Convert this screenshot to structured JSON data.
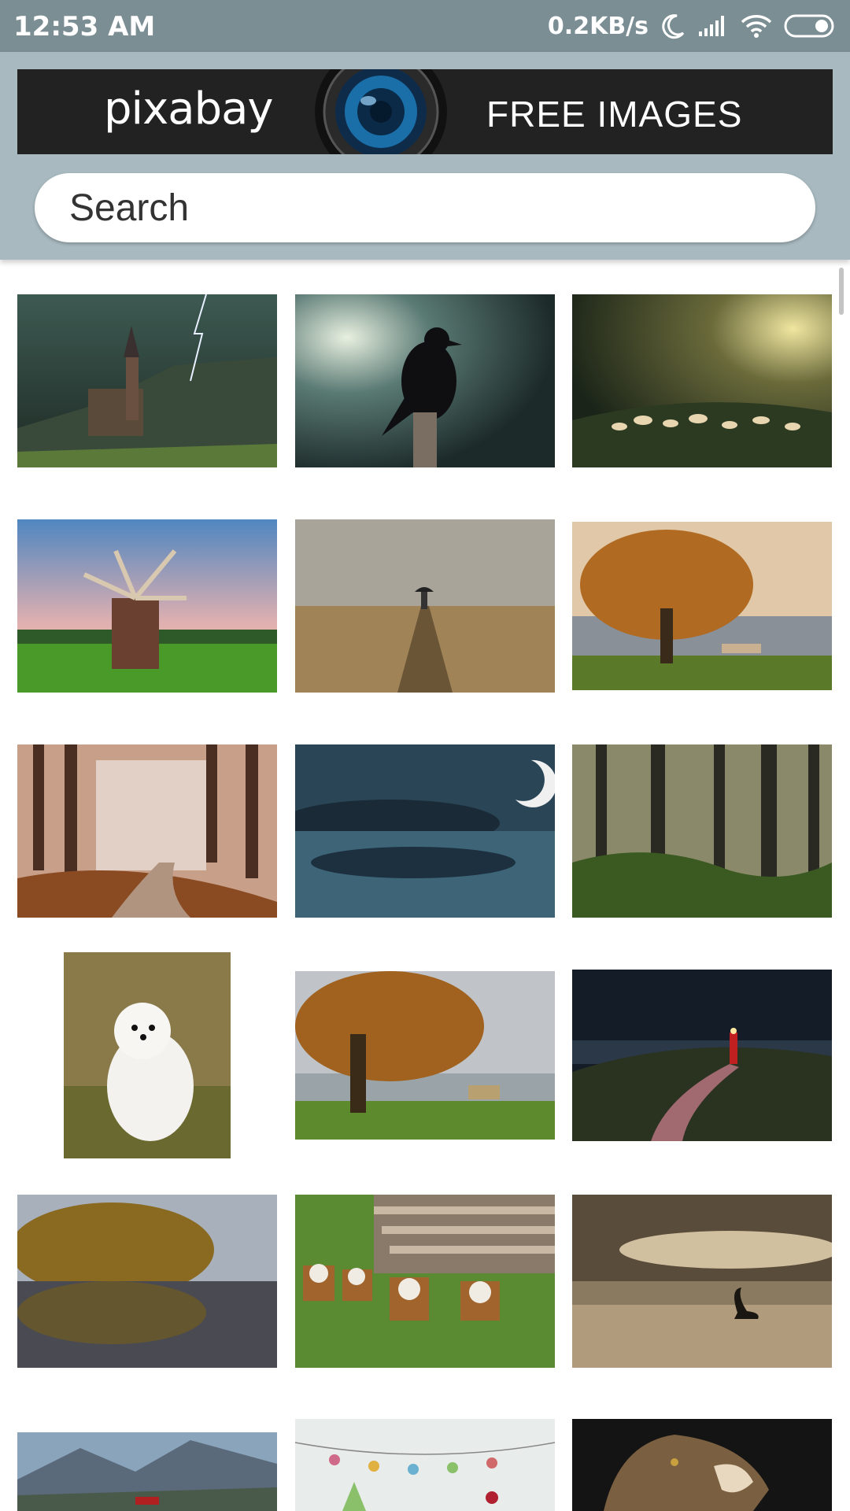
{
  "status_bar": {
    "time": "12:53 AM",
    "network_speed": "0.2KB/s",
    "icons": [
      "moon-icon",
      "signal-icon",
      "wifi-icon",
      "battery-icon"
    ]
  },
  "banner": {
    "logo_text": "pixabay",
    "tagline": "FREE IMAGES"
  },
  "search": {
    "placeholder": "Search"
  },
  "colors": {
    "status_bar": "#7b8e94",
    "header": "#a8bac0",
    "banner": "#222222"
  },
  "images": [
    {
      "name": "church-lightning-image"
    },
    {
      "name": "raven-on-post-image"
    },
    {
      "name": "forest-mushrooms-image"
    },
    {
      "name": "windmill-image"
    },
    {
      "name": "umbrella-field-image"
    },
    {
      "name": "autumn-tree-bench-image"
    },
    {
      "name": "autumn-forest-path-image"
    },
    {
      "name": "moon-reflection-image"
    },
    {
      "name": "pine-forest-image"
    },
    {
      "name": "white-dog-image"
    },
    {
      "name": "autumn-tree-lake-image"
    },
    {
      "name": "lighthouse-night-image"
    },
    {
      "name": "autumn-lake-image"
    },
    {
      "name": "cows-logs-image"
    },
    {
      "name": "swan-sunset-image"
    },
    {
      "name": "mountain-valley-image"
    },
    {
      "name": "christmas-card-image"
    },
    {
      "name": "lynx-image"
    }
  ]
}
